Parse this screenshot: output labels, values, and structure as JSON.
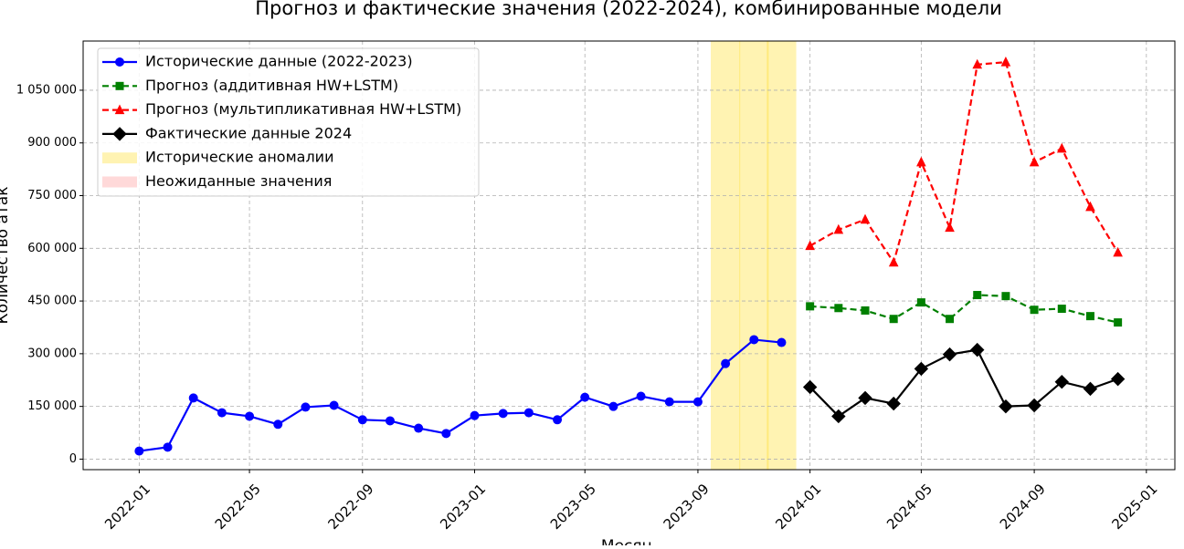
{
  "chart_data": {
    "type": "line",
    "title": "Прогноз и фактические значения (2022-2024), комбинированные модели",
    "xlabel": "Месяц",
    "ylabel": "Количество атак",
    "xlim": [
      "2021-11",
      "2025-02"
    ],
    "xticks": [
      "2022-01",
      "2022-05",
      "2022-09",
      "2023-01",
      "2023-05",
      "2023-09",
      "2024-01",
      "2024-05",
      "2024-09",
      "2025-01"
    ],
    "ylim": [
      -30000,
      1190000
    ],
    "yticks": [
      0,
      {
        "value": 150000,
        "label": "150 000"
      },
      {
        "value": 300000,
        "label": "300 000"
      },
      {
        "value": 450000,
        "label": "450 000"
      },
      {
        "value": 600000,
        "label": "600 000"
      },
      {
        "value": 750000,
        "label": "750 000"
      },
      {
        "value": 900000,
        "label": "900 000"
      },
      {
        "value": 1050000,
        "label": "1 050 000"
      }
    ],
    "grid": true,
    "legend": "upper left",
    "series": [
      {
        "name": "Исторические данные (2022-2023)",
        "color": "#0000ff",
        "marker": "o",
        "linestyle": "-",
        "x": [
          "2022-01",
          "2022-02",
          "2022-03",
          "2022-04",
          "2022-05",
          "2022-06",
          "2022-07",
          "2022-08",
          "2022-09",
          "2022-10",
          "2022-11",
          "2022-12",
          "2023-01",
          "2023-02",
          "2023-03",
          "2023-04",
          "2023-05",
          "2023-06",
          "2023-07",
          "2023-08",
          "2023-09",
          "2023-10",
          "2023-11",
          "2023-12"
        ],
        "values": [
          23000,
          34000,
          174000,
          132000,
          122000,
          99000,
          148000,
          153000,
          112000,
          109000,
          88000,
          73000,
          124000,
          130000,
          132000,
          112000,
          176000,
          150000,
          179000,
          163000,
          163000,
          272000,
          340000,
          332000
        ]
      },
      {
        "name": "Прогноз (аддитивная HW+LSTM)",
        "color": "#008000",
        "marker": "s",
        "linestyle": "--",
        "x": [
          "2024-01",
          "2024-02",
          "2024-03",
          "2024-04",
          "2024-05",
          "2024-06",
          "2024-07",
          "2024-08",
          "2024-09",
          "2024-10",
          "2024-11",
          "2024-12"
        ],
        "values": [
          435000,
          430000,
          423000,
          399000,
          446000,
          399000,
          467000,
          464000,
          425000,
          428000,
          407000,
          389000
        ]
      },
      {
        "name": "Прогноз (мультипликативная HW+LSTM)",
        "color": "#ff0000",
        "marker": "^",
        "linestyle": "--",
        "x": [
          "2024-01",
          "2024-02",
          "2024-03",
          "2024-04",
          "2024-05",
          "2024-06",
          "2024-07",
          "2024-08",
          "2024-09",
          "2024-10",
          "2024-11",
          "2024-12"
        ],
        "values": [
          607000,
          653000,
          682000,
          560000,
          845000,
          659000,
          1123000,
          1130000,
          845000,
          884000,
          718000,
          588000
        ]
      },
      {
        "name": "Фактические данные 2024",
        "color": "#000000",
        "marker": "D",
        "linestyle": "-",
        "x": [
          "2024-01",
          "2024-02",
          "2024-03",
          "2024-04",
          "2024-05",
          "2024-06",
          "2024-07",
          "2024-08",
          "2024-09",
          "2024-10",
          "2024-11",
          "2024-12"
        ],
        "values": [
          205000,
          122000,
          174000,
          158000,
          257000,
          298000,
          311000,
          150000,
          153000,
          220000,
          200000,
          228000
        ]
      }
    ],
    "bands": [
      {
        "name": "Исторические аномалии",
        "color": "#ffd700",
        "months": [
          "2023-10",
          "2023-11",
          "2023-12"
        ]
      },
      {
        "name": "Неожиданные значения",
        "color": "#ff8080",
        "months": []
      }
    ]
  }
}
